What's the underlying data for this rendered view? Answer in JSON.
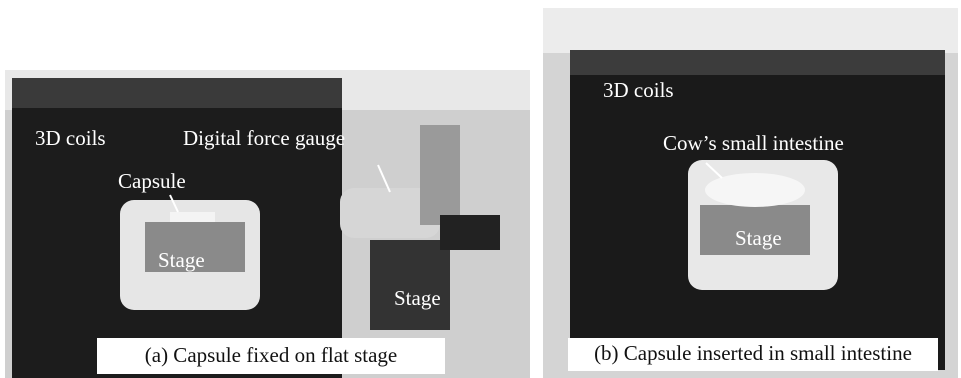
{
  "panels": [
    {
      "labels": [
        "3D coils",
        "Digital force gauge",
        "Capsule",
        "Stage",
        "Stage"
      ],
      "caption": "(a) Capsule fixed on flat stage"
    },
    {
      "labels": [
        "3D coils",
        "Cow’s small intestine",
        "Stage"
      ],
      "caption": "(b) Capsule inserted in small intestine"
    }
  ]
}
